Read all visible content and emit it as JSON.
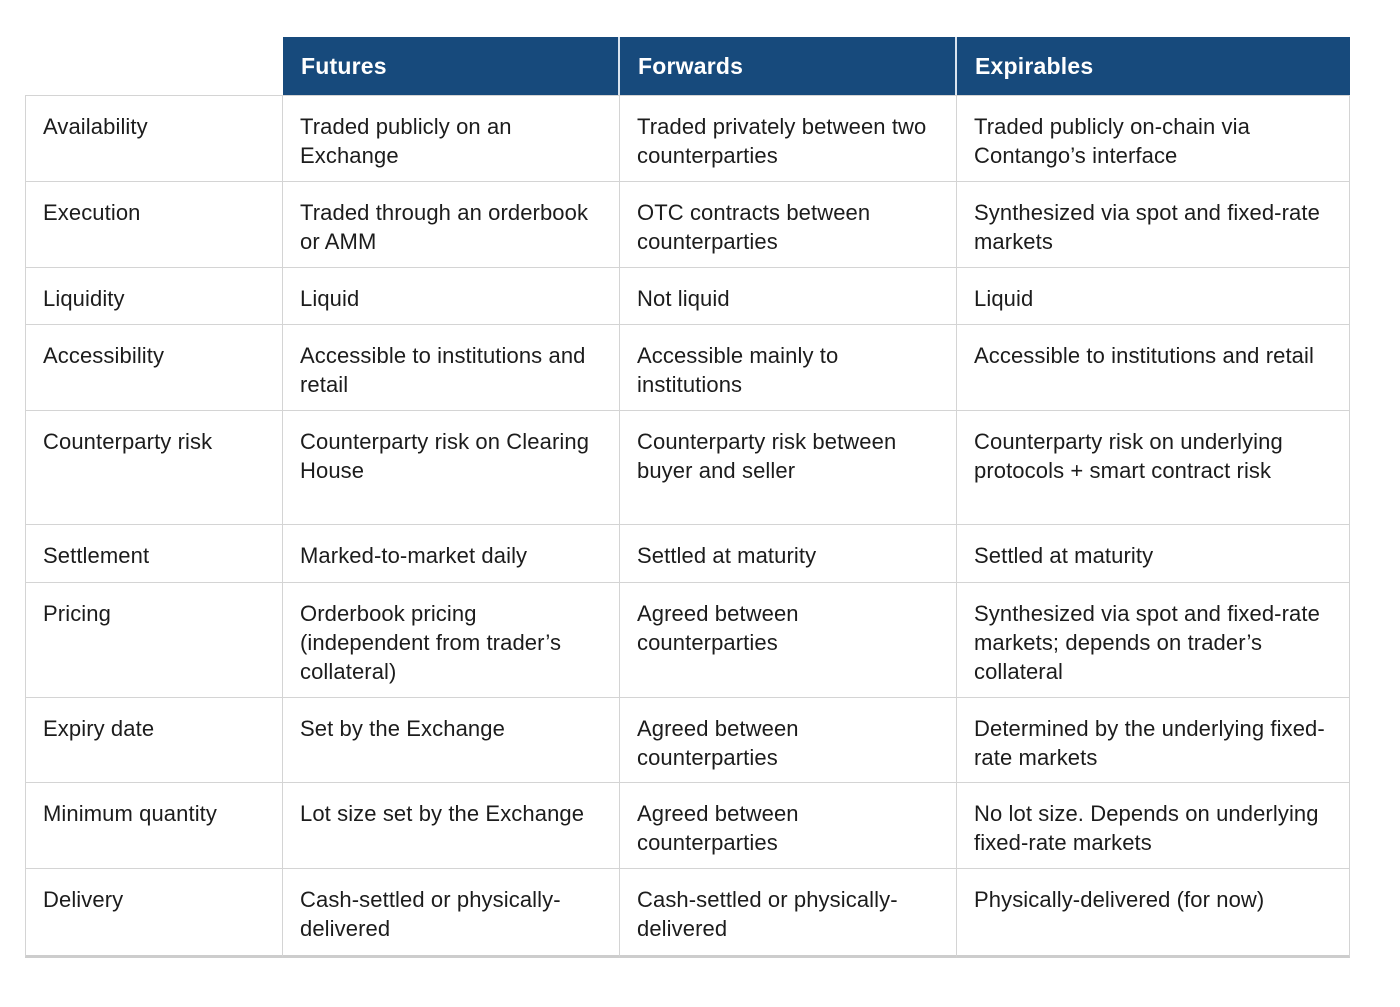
{
  "table": {
    "header": {
      "columns": [
        "Futures",
        "Forwards",
        "Expirables"
      ]
    },
    "rows": [
      {
        "label": "Availability",
        "cells": [
          "Traded publicly on an Exchange",
          "Traded privately between two counterparties",
          "Traded publicly on-chain via Contango’s interface"
        ]
      },
      {
        "label": "Execution",
        "cells": [
          "Traded through an orderbook or AMM",
          "OTC contracts between counterparties",
          "Synthesized via spot and fixed-rate markets"
        ]
      },
      {
        "label": "Liquidity",
        "cells": [
          "Liquid",
          "Not liquid",
          "Liquid"
        ]
      },
      {
        "label": "Accessibility",
        "cells": [
          "Accessible to institutions and retail",
          "Accessible mainly to institutions",
          "Accessible to institutions and retail"
        ]
      },
      {
        "label": "Counterparty risk",
        "cells": [
          "Counterparty risk on Clearing House",
          "Counterparty risk between buyer and seller",
          "Counterparty risk on underlying protocols + smart contract risk"
        ]
      },
      {
        "label": "Settlement",
        "cells": [
          "Marked-to-market daily",
          "Settled at maturity",
          "Settled at maturity"
        ]
      },
      {
        "label": "Pricing",
        "cells": [
          "Orderbook pricing (independent from trader’s collateral)",
          "Agreed between counterparties",
          "Synthesized via spot and fixed-rate markets; depends on trader’s collateral"
        ]
      },
      {
        "label": "Expiry date",
        "cells": [
          "Set by the Exchange",
          "Agreed between counterparties",
          "Determined by the underlying fixed-rate markets"
        ]
      },
      {
        "label": "Minimum quantity",
        "cells": [
          "Lot size set by the Exchange",
          "Agreed between counterparties",
          "No lot size. Depends on underlying fixed-rate markets"
        ]
      },
      {
        "label": "Delivery",
        "cells": [
          "Cash-settled or physically-delivered",
          "Cash-settled or physically-delivered",
          "Physically-delivered (for now)"
        ]
      }
    ],
    "colors": {
      "header_bg": "#174a7c",
      "header_text": "#ffffff",
      "body_text": "#1c1c1c",
      "border": "#d4d4d4"
    }
  }
}
